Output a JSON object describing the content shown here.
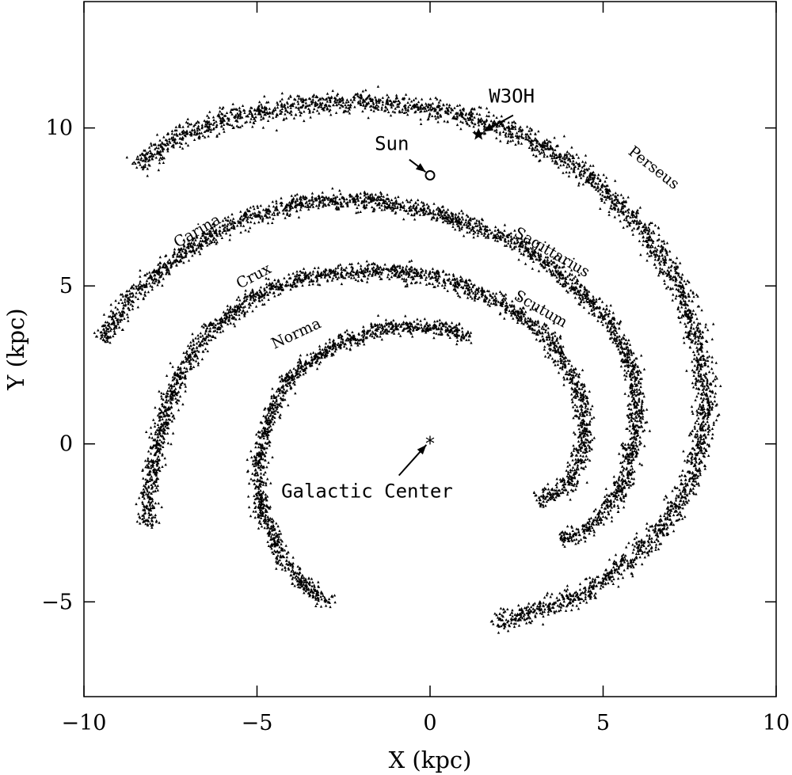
{
  "chart_data": {
    "type": "scatter",
    "xlabel": "X (kpc)",
    "ylabel": "Y (kpc)",
    "xlim": [
      -10,
      10
    ],
    "ylim": [
      -8,
      14
    ],
    "xticks": [
      -10,
      -5,
      0,
      5,
      10
    ],
    "yticks": [
      -5,
      0,
      5,
      10
    ],
    "xtick_labels": [
      "−10",
      "−5",
      "0",
      "5",
      "10"
    ],
    "ytick_labels": [
      "−5",
      "0",
      "5",
      "10"
    ],
    "grid": false,
    "legend": "none",
    "marker": "small triangle",
    "marker_color": "#000000",
    "series": [
      {
        "name": "Perseus",
        "path": [
          [
            -8.5,
            8.8
          ],
          [
            -7.2,
            9.8
          ],
          [
            -5.5,
            10.4
          ],
          [
            -3.0,
            10.8
          ],
          [
            -1.0,
            10.8
          ],
          [
            1.0,
            10.4
          ],
          [
            2.8,
            9.7
          ],
          [
            4.5,
            8.6
          ],
          [
            6.0,
            7.0
          ],
          [
            7.2,
            5.0
          ],
          [
            7.8,
            3.0
          ],
          [
            8.0,
            1.0
          ],
          [
            7.6,
            -1.0
          ],
          [
            6.8,
            -2.5
          ],
          [
            5.8,
            -3.7
          ],
          [
            4.5,
            -4.7
          ],
          [
            3.2,
            -5.2
          ],
          [
            1.8,
            -5.7
          ]
        ],
        "spread": 0.3,
        "label_pos": [
          5.7,
          9.2
        ],
        "label_rotation": 38
      },
      {
        "name": "Sagittarius",
        "path": [
          [
            -9.5,
            3.3
          ],
          [
            -8.5,
            4.8
          ],
          [
            -7.0,
            6.2
          ],
          [
            -5.5,
            7.1
          ],
          [
            -3.5,
            7.7
          ],
          [
            -1.5,
            7.7
          ],
          [
            0.5,
            7.2
          ],
          [
            2.5,
            6.4
          ],
          [
            4.0,
            5.2
          ],
          [
            5.2,
            3.9
          ],
          [
            5.9,
            2.3
          ],
          [
            6.0,
            0.5
          ],
          [
            5.6,
            -1.3
          ],
          [
            4.8,
            -2.5
          ],
          [
            3.8,
            -3.1
          ]
        ],
        "spread": 0.25,
        "label_pos": [
          2.4,
          6.6
        ],
        "label_rotation": 30
      },
      {
        "name": "Scutum",
        "path": [
          [
            -8.2,
            -2.6
          ],
          [
            -8.0,
            -0.5
          ],
          [
            -7.5,
            1.6
          ],
          [
            -6.6,
            3.3
          ],
          [
            -5.2,
            4.6
          ],
          [
            -3.5,
            5.3
          ],
          [
            -1.5,
            5.5
          ],
          [
            0.5,
            5.2
          ],
          [
            2.2,
            4.4
          ],
          [
            3.5,
            3.3
          ],
          [
            4.3,
            1.8
          ],
          [
            4.5,
            0.0
          ],
          [
            4.0,
            -1.3
          ],
          [
            3.1,
            -1.8
          ]
        ],
        "spread": 0.25,
        "label_pos": [
          2.4,
          4.6
        ],
        "label_rotation": 30
      },
      {
        "name": "Norma",
        "path": [
          [
            1.2,
            3.4
          ],
          [
            0.2,
            3.7
          ],
          [
            -1.2,
            3.7
          ],
          [
            -2.8,
            3.1
          ],
          [
            -4.0,
            2.2
          ],
          [
            -4.7,
            0.8
          ],
          [
            -5.0,
            -0.8
          ],
          [
            -4.8,
            -2.3
          ],
          [
            -4.3,
            -3.6
          ],
          [
            -3.6,
            -4.5
          ],
          [
            -2.9,
            -5.1
          ]
        ],
        "spread": 0.22,
        "label_pos": [
          -4.5,
          3.0
        ],
        "label_rotation": -25
      }
    ],
    "extra_labels": [
      {
        "text": "Carina",
        "pos": [
          -7.3,
          6.2
        ],
        "rotation": -30
      },
      {
        "text": "Crux",
        "pos": [
          -5.5,
          4.9
        ],
        "rotation": -28
      }
    ],
    "points": [
      {
        "name": "Sun",
        "x": 0,
        "y": 8.5,
        "marker": "circle",
        "label_pos": [
          -1.6,
          9.3
        ],
        "arrow_from": [
          -0.6,
          9.0
        ]
      },
      {
        "name": "W3OH",
        "x": 1.4,
        "y": 9.8,
        "marker": "star",
        "label_pos": [
          1.7,
          10.8
        ],
        "arrow_from": [
          2.4,
          10.4
        ]
      },
      {
        "name": "Galactic Center",
        "x": 0,
        "y": 0.1,
        "marker": "asterisk",
        "label_pos": [
          -4.3,
          -1.7
        ],
        "arrow_from": [
          -0.9,
          -1.0
        ]
      }
    ]
  }
}
